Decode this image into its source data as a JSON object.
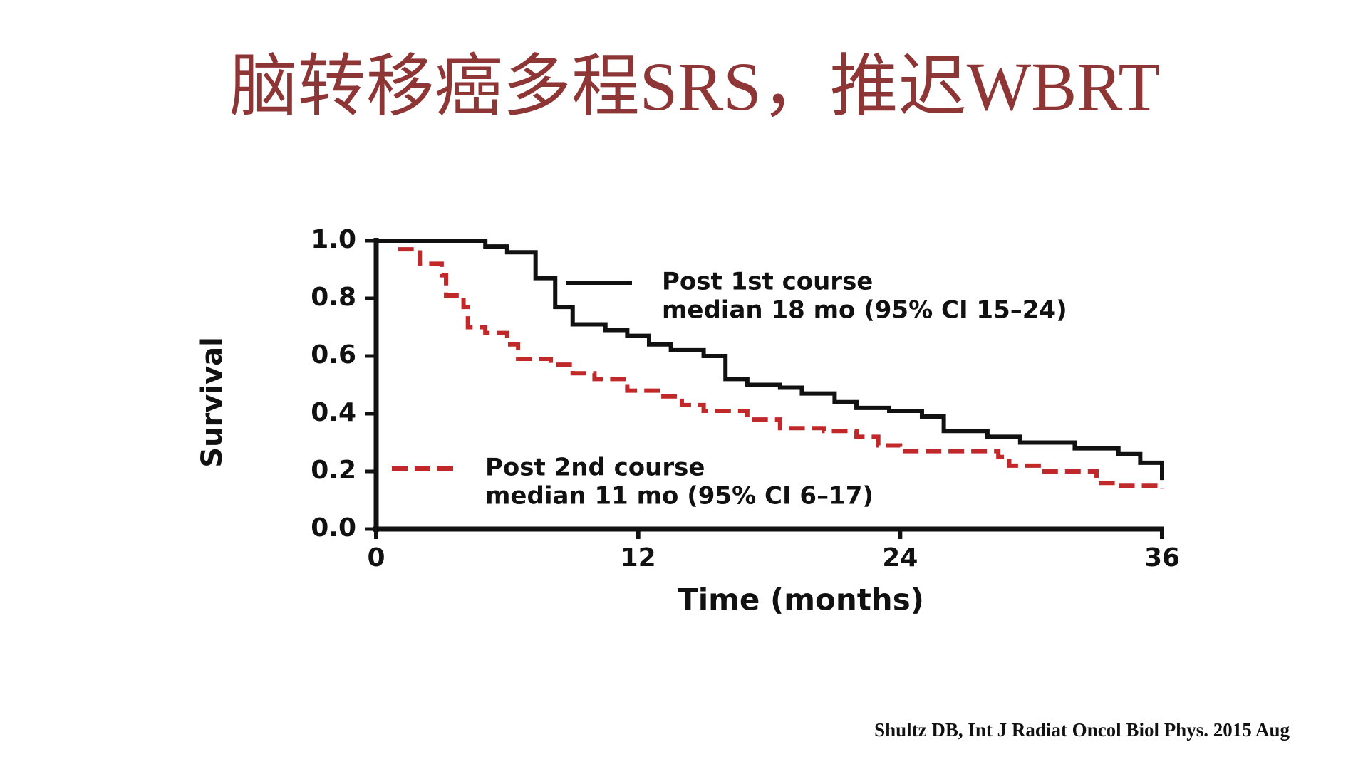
{
  "slide_title": "脑转移癌多程SRS，推迟WBRT",
  "citation": "Shultz DB, Int J Radiat Oncol Biol Phys. 2015 Aug",
  "chart_data": {
    "type": "step",
    "x_label": "Time (months)",
    "y_label": "Survival",
    "xlim": [
      0,
      36
    ],
    "xticks": [
      0,
      12,
      24,
      36
    ],
    "ylim": [
      0,
      1
    ],
    "yticks": [
      {
        "value": 0,
        "label": "0.0"
      },
      0.2,
      0.4,
      0.6,
      0.8,
      {
        "value": 1,
        "label": "1.0"
      }
    ],
    "series": [
      {
        "name": "Post 1st course",
        "color": "#111111",
        "dash": false,
        "annotation": "median 18 mo (95% CI 15–24)",
        "x": [
          0,
          5,
          6,
          7.3,
          8.2,
          9,
          10.5,
          11.5,
          12.5,
          13.5,
          15,
          16,
          17,
          18.5,
          19.5,
          21,
          22,
          23.5,
          25,
          26,
          28,
          29.5,
          32,
          34,
          35,
          36
        ],
        "values": [
          1.0,
          0.98,
          0.96,
          0.87,
          0.77,
          0.71,
          0.69,
          0.67,
          0.64,
          0.62,
          0.6,
          0.52,
          0.5,
          0.49,
          0.47,
          0.44,
          0.42,
          0.41,
          0.39,
          0.34,
          0.32,
          0.3,
          0.28,
          0.26,
          0.23,
          0.17
        ]
      },
      {
        "name": "Post 2nd course",
        "color": "#c0282a",
        "dash": true,
        "annotation": "median 11 mo (95% CI 6–17)",
        "x": [
          1,
          2,
          3,
          3.2,
          4,
          4.2,
          5,
          6,
          6.5,
          8,
          9,
          10,
          11.5,
          13,
          14,
          15,
          17,
          18.5,
          20.5,
          22,
          23,
          24,
          28.5,
          29,
          30.5,
          33,
          34,
          36
        ],
        "values": [
          0.97,
          0.92,
          0.88,
          0.81,
          0.77,
          0.7,
          0.68,
          0.64,
          0.59,
          0.57,
          0.54,
          0.52,
          0.48,
          0.46,
          0.43,
          0.41,
          0.38,
          0.35,
          0.34,
          0.32,
          0.29,
          0.27,
          0.25,
          0.22,
          0.2,
          0.16,
          0.15,
          0.14
        ]
      }
    ]
  }
}
